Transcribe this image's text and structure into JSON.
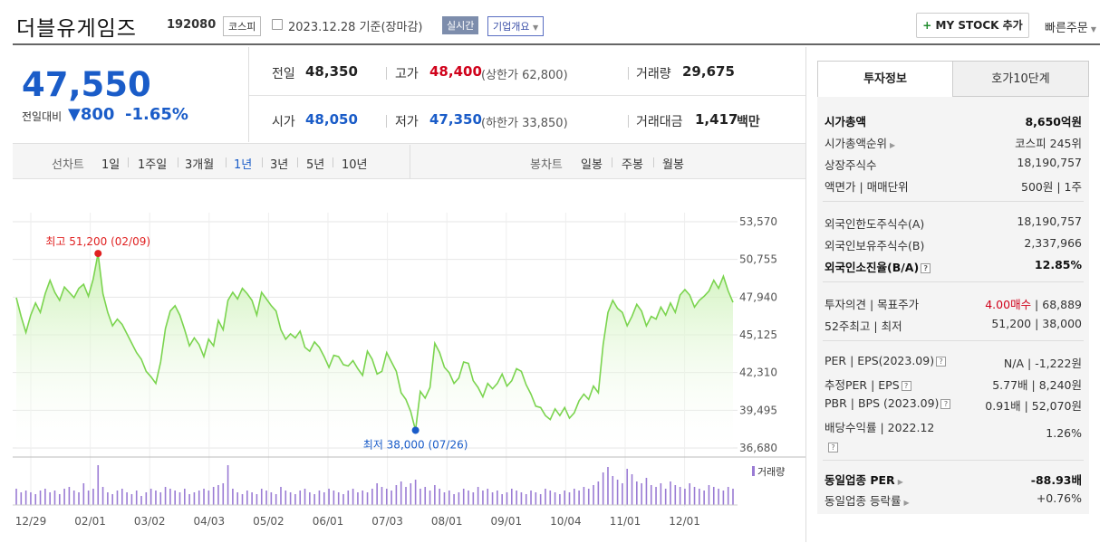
{
  "header": {
    "company": "더블유게임즈",
    "code": "192080",
    "market_tag": "코스피",
    "date_text": "2023.12.28 기준(장마감)",
    "realtime_badge": "실시간",
    "company_overview": "기업개요",
    "my_stock_label": "MY STOCK 추가",
    "my_stock_plus": "+",
    "quick_order": "빠른주문"
  },
  "quote": {
    "price": "47,550",
    "prev_label": "전일대비",
    "change": "▼800",
    "change_pct": "-1.65%",
    "prev_close_label": "전일",
    "prev_close": "48,350",
    "high_label": "고가",
    "high": "48,400",
    "upper_limit": "(상한가 62,800)",
    "volume_label": "거래량",
    "volume": "29,675",
    "open_label": "시가",
    "open": "48,050",
    "low_label": "저가",
    "low": "47,350",
    "lower_limit": "(하한가 33,850)",
    "amount_label": "거래대금",
    "amount": "1,417",
    "amount_unit": "백만"
  },
  "tabs": {
    "line_label": "선차트",
    "line_periods": [
      "1일",
      "1주일",
      "3개월",
      "1년",
      "3년",
      "5년",
      "10년"
    ],
    "selected_period": "1년",
    "candle_label": "봉차트",
    "candle_periods": [
      "일봉",
      "주봉",
      "월봉"
    ]
  },
  "chart_data": {
    "type": "area",
    "y_ticks": [
      "53,570",
      "50,755",
      "47,940",
      "45,125",
      "42,310",
      "39,495",
      "36,680"
    ],
    "ylim": [
      36680,
      53570
    ],
    "x_ticks": [
      "12/29",
      "02/01",
      "03/02",
      "04/03",
      "05/02",
      "06/01",
      "07/03",
      "08/01",
      "09/01",
      "10/04",
      "11/01",
      "12/01"
    ],
    "high_annotation": "최고 51,200 (02/09)",
    "low_annotation": "최저 38,000 (07/26)",
    "volume_label": "거래량",
    "colors": {
      "line": "#7bd44f",
      "fill_top": "#c9f1b2",
      "high": "#e02020",
      "low": "#1a5cc8",
      "volume": "#9a7bd4"
    },
    "values": [
      47900,
      46500,
      45300,
      46600,
      47500,
      46800,
      48200,
      49200,
      48300,
      47700,
      48700,
      48300,
      47900,
      48600,
      48900,
      48000,
      49300,
      51200,
      48200,
      46800,
      45800,
      46300,
      45900,
      45200,
      44500,
      43800,
      43300,
      42400,
      42000,
      41500,
      43100,
      45600,
      46900,
      47300,
      46600,
      45500,
      44300,
      44900,
      44400,
      43500,
      44800,
      44300,
      46200,
      45500,
      47700,
      48300,
      47800,
      48600,
      48200,
      47700,
      46600,
      48300,
      47800,
      47300,
      46900,
      45500,
      44800,
      45200,
      44900,
      45400,
      44200,
      43900,
      44600,
      44200,
      43500,
      42700,
      43600,
      43500,
      42900,
      42800,
      43200,
      42600,
      42100,
      43900,
      43300,
      42200,
      42400,
      43800,
      43100,
      42400,
      40800,
      40300,
      39400,
      38000,
      40900,
      40400,
      41200,
      44500,
      43800,
      42700,
      42300,
      41500,
      41900,
      43100,
      43000,
      41700,
      41200,
      40500,
      41500,
      41100,
      41500,
      42200,
      41300,
      41700,
      42600,
      42400,
      41400,
      40700,
      39800,
      39700,
      39100,
      38800,
      39600,
      39100,
      39700,
      38900,
      39300,
      40200,
      40700,
      40300,
      41300,
      40800,
      44400,
      46800,
      47700,
      47100,
      46800,
      45800,
      46500,
      47400,
      46900,
      45800,
      46500,
      46300,
      47200,
      46600,
      47500,
      46800,
      48100,
      48500,
      48100,
      47200,
      47700,
      48000,
      48400,
      49200,
      48600,
      49500,
      48400,
      47550
    ],
    "volume": [
      9,
      7,
      8,
      7,
      6,
      8,
      9,
      7,
      8,
      6,
      9,
      10,
      8,
      7,
      12,
      8,
      9,
      22,
      10,
      7,
      6,
      8,
      9,
      7,
      6,
      8,
      5,
      7,
      9,
      8,
      7,
      10,
      9,
      8,
      7,
      9,
      6,
      7,
      8,
      9,
      8,
      10,
      11,
      12,
      22,
      9,
      7,
      6,
      8,
      7,
      6,
      9,
      8,
      7,
      6,
      10,
      8,
      7,
      6,
      8,
      9,
      7,
      6,
      8,
      7,
      9,
      8,
      7,
      6,
      8,
      9,
      7,
      8,
      7,
      9,
      12,
      10,
      9,
      8,
      11,
      13,
      10,
      12,
      14,
      9,
      10,
      8,
      11,
      9,
      7,
      8,
      6,
      7,
      9,
      8,
      7,
      10,
      8,
      9,
      7,
      8,
      6,
      7,
      9,
      8,
      7,
      6,
      8,
      7,
      6,
      9,
      8,
      7,
      6,
      8,
      7,
      9,
      8,
      10,
      9,
      11,
      13,
      18,
      21,
      16,
      14,
      12,
      20,
      17,
      13,
      12,
      15,
      11,
      10,
      12,
      9,
      13,
      11,
      10,
      9,
      12,
      10,
      9,
      8,
      11,
      10,
      9,
      8,
      10,
      9
    ]
  },
  "right_panel": {
    "tab_invest": "투자정보",
    "tab_orderbook": "호가10단계",
    "market_cap_label": "시가총액",
    "market_cap": "8,650억원",
    "market_cap_rank_label": "시가총액순위",
    "market_cap_rank": "코스피 245위",
    "shares_label": "상장주식수",
    "shares": "18,190,757",
    "par_label": "액면가 | 매매단위",
    "par": "500원 | 1주",
    "foreign_limit_label": "외국인한도주식수(A)",
    "foreign_limit": "18,190,757",
    "foreign_hold_label": "외국인보유주식수(B)",
    "foreign_hold": "2,337,966",
    "foreign_rate_label": "외국인소진율(B/A)",
    "foreign_rate": "12.85%",
    "opinion_label": "투자의견 | 목표주가",
    "opinion": "4.00매수",
    "target": "68,889",
    "range52_label": "52주최고 | 최저",
    "range52": "51,200 | 38,000",
    "per_label": "PER | EPS(2023.09)",
    "per": "N/A | -1,222원",
    "est_per_label": "추정PER | EPS",
    "est_per": "5.77배 | 8,240원",
    "pbr_label": "PBR | BPS (2023.09)",
    "pbr": "0.91배 | 52,070원",
    "div_label": "배당수익률 | 2022.12",
    "div": "1.26%",
    "sector_per_label": "동일업종 PER",
    "sector_per": "-88.93배",
    "sector_rate_label": "동일업종 등락률",
    "sector_rate": "+0.76%",
    "help": "?"
  }
}
